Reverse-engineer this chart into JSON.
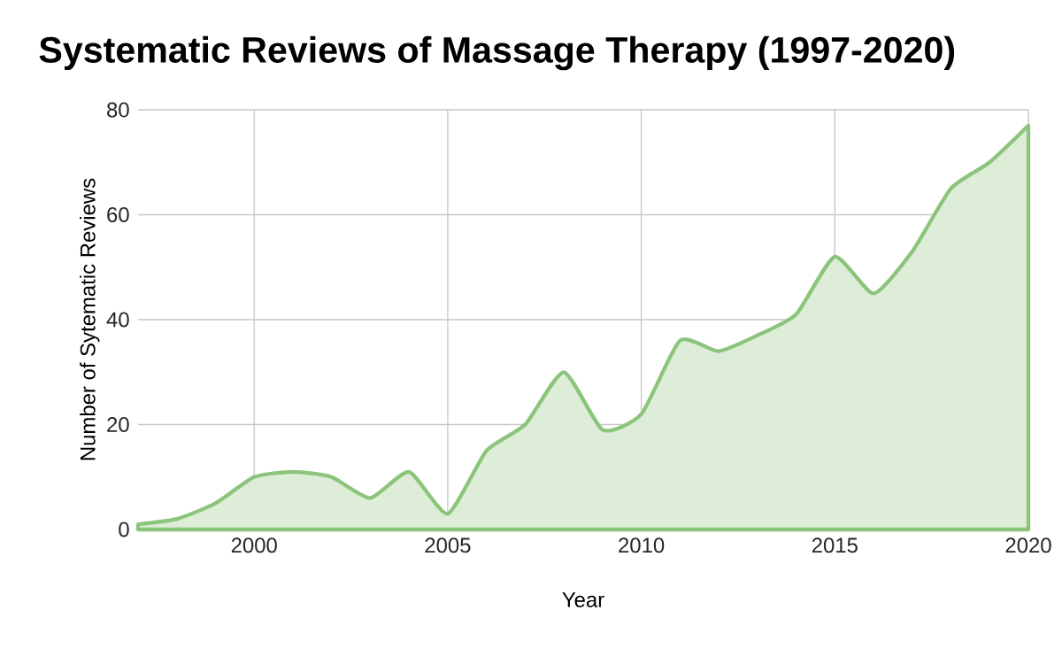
{
  "chart_data": {
    "type": "area",
    "title": "Systematic Reviews of Massage Therapy (1997-2020)",
    "xlabel": "Year",
    "ylabel": "Number of Sytematic Reviews",
    "x": [
      1997,
      1998,
      1999,
      2000,
      2001,
      2002,
      2003,
      2004,
      2005,
      2006,
      2007,
      2008,
      2009,
      2010,
      2011,
      2012,
      2013,
      2014,
      2015,
      2016,
      2017,
      2018,
      2019,
      2020
    ],
    "series": [
      {
        "color": "#8cc47c",
        "values": [
          1,
          2,
          5,
          10,
          11,
          10,
          6,
          11,
          3,
          15,
          20,
          30,
          19,
          22,
          36,
          34,
          37,
          41,
          52,
          45,
          53,
          65,
          70,
          77
        ]
      }
    ],
    "xlim": [
      1997,
      2020
    ],
    "ylim": [
      0,
      80
    ],
    "xticks": [
      2000,
      2005,
      2010,
      2015,
      2020
    ],
    "yticks": [
      0,
      20,
      40,
      60,
      80
    ],
    "grid": true
  }
}
